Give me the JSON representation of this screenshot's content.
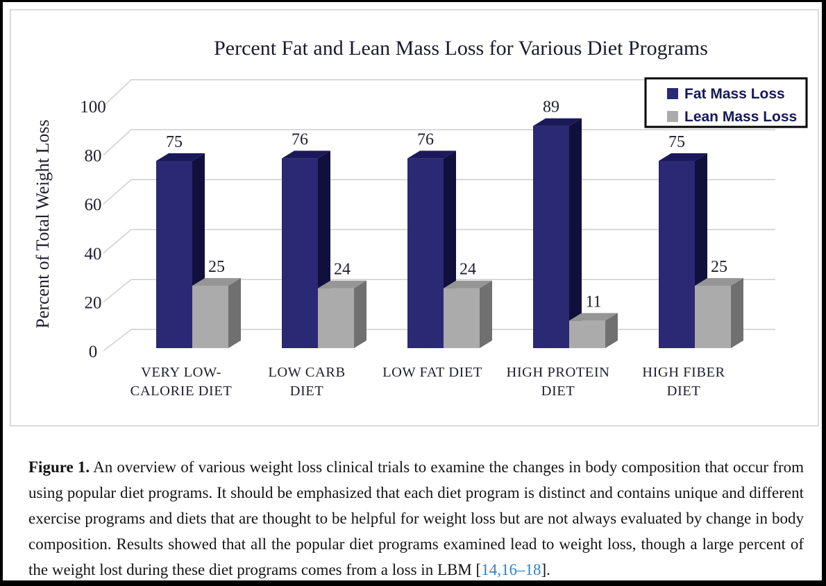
{
  "figure": {
    "caption_label": "Figure 1.",
    "caption_text": "An overview of various weight loss clinical trials to examine the changes in body composition that occur from using popular diet programs. It should be emphasized that each diet program is distinct and contains unique and different exercise programs and diets that are thought to be helpful for weight loss but are not always evaluated by change in body composition. Results showed that all the popular diet programs examined lead to weight loss, though a large percent of the weight lost during these diet programs comes from a loss in LBM",
    "citation_open": " [",
    "citation": "14,16–18",
    "citation_close": "].",
    "link_color": "#3380BE",
    "text_color": "#141414"
  },
  "chart_data": {
    "type": "bar",
    "variant": "3d-clustered-column",
    "title": "Percent Fat and Lean Mass Loss for Various Diet Programs",
    "xlabel": "",
    "ylabel": "Percent of Total Weight Loss",
    "categories": [
      "VERY LOW-CALORIE DIET",
      "LOW CARB DIET",
      "LOW FAT DIET",
      "HIGH PROTEIN DIET",
      "HIGH FIBER DIET"
    ],
    "category_label_lines": [
      [
        "VERY LOW-",
        "CALORIE DIET"
      ],
      [
        "LOW CARB",
        "DIET"
      ],
      [
        "LOW FAT DIET"
      ],
      [
        "HIGH PROTEIN",
        "DIET"
      ],
      [
        "HIGH FIBER",
        "DIET"
      ]
    ],
    "series": [
      {
        "name": "Fat Mass Loss",
        "values": [
          75,
          76,
          76,
          89,
          75
        ],
        "color": "#2B2973",
        "color_top": "#1A195A",
        "color_side": "#11103C"
      },
      {
        "name": "Lean Mass Loss",
        "values": [
          25,
          24,
          24,
          11,
          25
        ],
        "color": "#ABABAB",
        "color_top": "#969696",
        "color_side": "#707070"
      }
    ],
    "yticks": [
      0,
      20,
      40,
      60,
      80,
      100
    ],
    "ylim": [
      0,
      100
    ],
    "grid": true,
    "gridline_color": "#D9D9D9",
    "data_labels": true,
    "legend_position": "top-right",
    "legend_border_color": "#000000",
    "title_color": "#1B1B2E",
    "text_color": "#1E1E2E",
    "legend_text_color": "#17175C"
  }
}
